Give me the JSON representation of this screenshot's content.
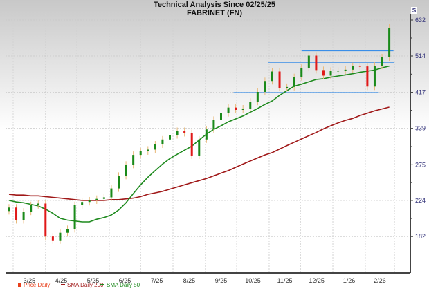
{
  "chart_data": {
    "type": "line",
    "subtype": "candlestick",
    "title": "Technical Analysis Since 02/25/25",
    "subtitle": "FABRINET (FN)",
    "y_unit_label": "$",
    "y_scale": "log",
    "ylim": [
      150,
      650
    ],
    "yticks": [
      182,
      224,
      275,
      339,
      417,
      514,
      632
    ],
    "xticks": [
      "3/25",
      "4/25",
      "5/25",
      "6/25",
      "7/25",
      "8/25",
      "9/25",
      "10/25",
      "11/25",
      "12/25",
      "1/26",
      "2/26"
    ],
    "grid": true,
    "legend_placement": "bottom-left",
    "legend": [
      {
        "label": "Price Daily",
        "color": "#e8401c"
      },
      {
        "label": "SMA Daily 200",
        "color": "#a01818"
      },
      {
        "label": "SMA Daily 50",
        "color": "#1e8a1e"
      }
    ],
    "colors": {
      "up": "#1a8a1a",
      "down": "#e01818",
      "wick": "#e8b878",
      "sma200": "#a01818",
      "sma50": "#1e8a1e",
      "levels": "#3a8ee8"
    },
    "start_date": "2025-02-25",
    "interval_days": 7,
    "price_close": [
      215,
      200,
      210,
      218,
      220,
      182,
      178,
      186,
      190,
      218,
      222,
      224,
      226,
      228,
      240,
      258,
      275,
      291,
      297,
      300,
      309,
      318,
      326,
      334,
      330,
      290,
      318,
      337,
      356,
      370,
      382,
      377,
      380,
      395,
      418,
      445,
      470,
      428,
      430,
      455,
      480,
      515,
      474,
      459,
      472,
      472,
      475,
      485,
      484,
      431,
      486,
      510,
      605
    ],
    "sma_200": [
      232,
      231,
      231,
      230,
      230,
      229,
      228,
      227,
      226,
      225,
      224,
      224,
      224,
      224,
      225,
      225,
      226,
      227,
      229,
      232,
      234,
      236,
      239,
      242,
      245,
      248,
      251,
      254,
      258,
      262,
      266,
      271,
      276,
      281,
      286,
      291,
      295,
      301,
      307,
      313,
      319,
      325,
      331,
      338,
      344,
      350,
      355,
      359,
      365,
      370,
      375,
      379,
      383
    ],
    "sma_50": [
      224,
      222,
      221,
      219,
      217,
      213,
      208,
      202,
      200,
      199,
      198,
      198,
      201,
      203,
      206,
      212,
      221,
      233,
      245,
      256,
      266,
      276,
      285,
      292,
      299,
      306,
      317,
      328,
      337,
      344,
      352,
      358,
      364,
      372,
      380,
      389,
      397,
      410,
      421,
      432,
      437,
      443,
      449,
      451,
      455,
      458,
      461,
      464,
      468,
      471,
      474,
      480,
      485
    ],
    "levels": [
      {
        "price": 530,
        "from": "2025-12-02",
        "to": "2026-02-28"
      },
      {
        "price": 496,
        "from": "2025-10-31",
        "to": "2026-03-01"
      },
      {
        "price": 416,
        "from": "2025-09-28",
        "to": "2026-02-14"
      }
    ]
  }
}
